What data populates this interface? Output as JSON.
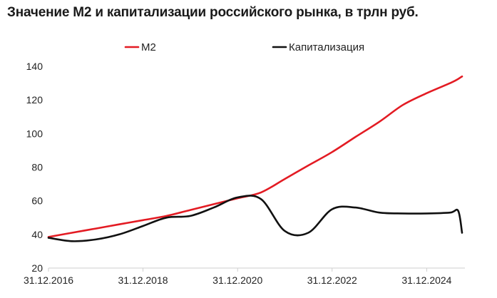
{
  "chart_data": {
    "type": "line",
    "title": "Значение М2 и капитализации российского рынка, в трлн руб.",
    "x_ticks": [
      "31.12.2016",
      "31.12.2018",
      "31.12.2020",
      "31.12.2022",
      "31.12.2024"
    ],
    "y_ticks": [
      "140",
      "120",
      "100",
      "80",
      "60",
      "40",
      "20"
    ],
    "ylim": [
      20,
      140
    ],
    "xlim": [
      "31.12.2016",
      "30.09.2025"
    ],
    "grid": false,
    "legend_position": "top-center",
    "x": [
      "31.12.2016",
      "30.06.2017",
      "31.12.2017",
      "30.06.2018",
      "31.12.2018",
      "30.06.2019",
      "31.12.2019",
      "30.06.2020",
      "31.12.2020",
      "30.06.2021",
      "31.12.2021",
      "30.06.2022",
      "31.12.2022",
      "30.06.2023",
      "31.12.2023",
      "30.06.2024",
      "31.12.2024",
      "30.06.2025",
      "31.08.2025",
      "30.09.2025"
    ],
    "series": [
      {
        "name": "М2",
        "color": "#e31b23",
        "values": [
          38.5,
          41,
          43.5,
          46,
          48.5,
          51,
          54.5,
          58,
          61.5,
          65,
          73,
          81,
          89,
          98,
          107,
          117,
          124,
          130,
          132.5,
          134
        ]
      },
      {
        "name": "Капитализация",
        "color": "#111111",
        "values": [
          38,
          36,
          37,
          40,
          45,
          50,
          51,
          56,
          62,
          61,
          42,
          41,
          55,
          56,
          53,
          52.5,
          52.5,
          53,
          54,
          41
        ]
      }
    ]
  }
}
